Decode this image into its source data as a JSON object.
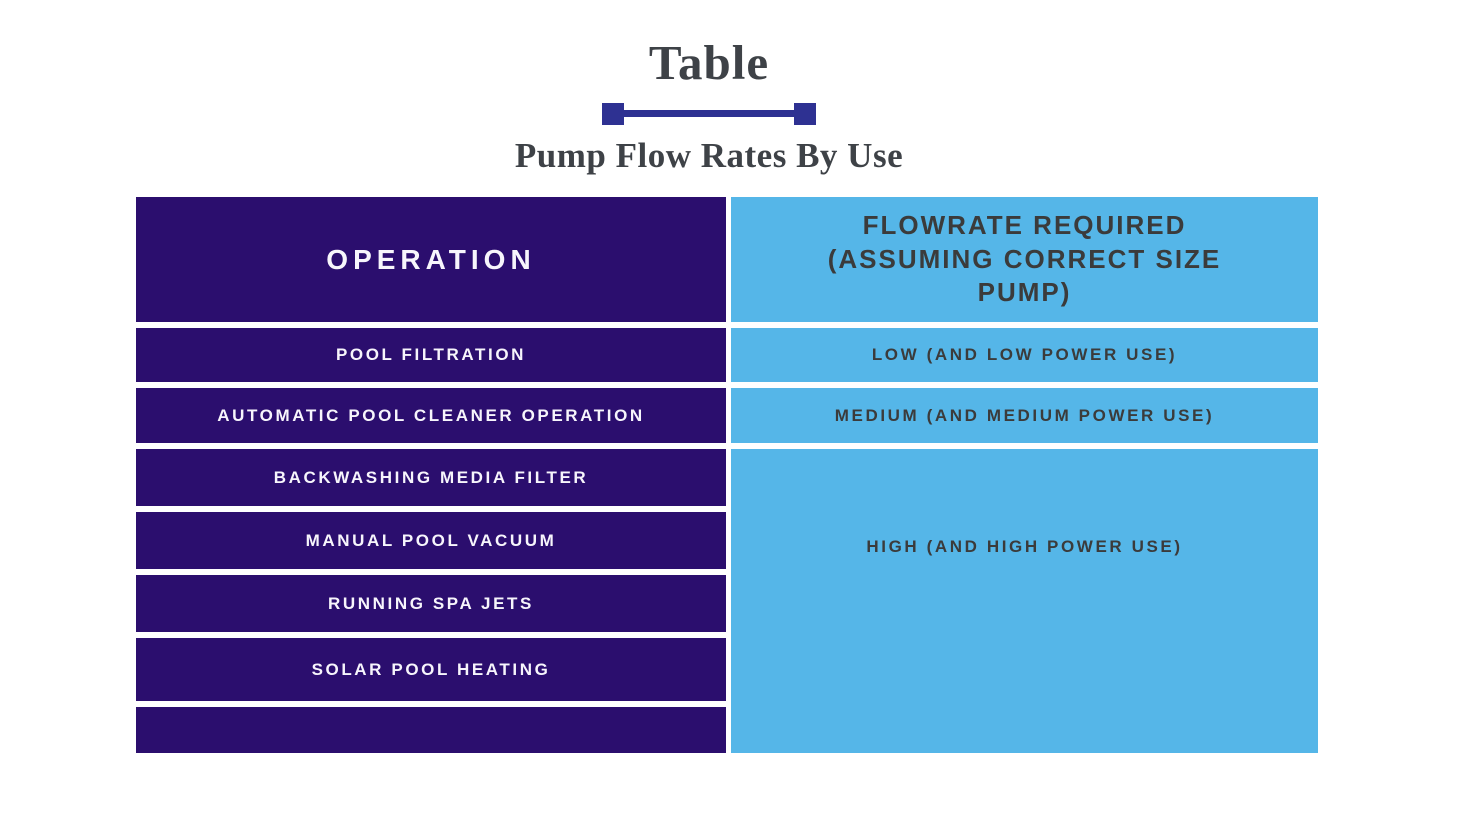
{
  "page": {
    "background": "#ffffff"
  },
  "colors": {
    "operation_column": "#2b0e6e",
    "flowrate_column": "#55b6e8",
    "divider_blue": "#2e3192",
    "heading_text": "#3e4247",
    "cell_dark_text": "#3b3b3b",
    "cell_light_text": "#ffffff"
  },
  "chart_data": {
    "type": "table",
    "title": "Table",
    "subtitle": "Pump Flow Rates By Use",
    "columns": [
      "OPERATION",
      "FLOWRATE REQUIRED (ASSUMING CORRECT SIZE PUMP)"
    ],
    "rows": [
      [
        "POOL FILTRATION",
        "LOW (AND LOW POWER USE)"
      ],
      [
        "AUTOMATIC POOL CLEANER OPERATION",
        "MEDIUM (AND MEDIUM POWER USE)"
      ],
      [
        "BACKWASHING MEDIA FILTER",
        "HIGH (AND HIGH POWER USE)"
      ],
      [
        "MANUAL POOL VACUUM",
        "HIGH (AND HIGH POWER USE)"
      ],
      [
        "RUNNING SPA JETS",
        "HIGH (AND HIGH POWER USE)"
      ],
      [
        "SOLAR POOL HEATING",
        "HIGH (AND HIGH POWER USE)"
      ],
      [
        "",
        "HIGH (AND HIGH POWER USE)"
      ]
    ],
    "layout_hints": {
      "merged_flowrate_cell_rows": [
        3,
        4,
        5,
        6,
        7
      ],
      "legend_position": "none",
      "grid": "white gaps between solid cells"
    }
  }
}
